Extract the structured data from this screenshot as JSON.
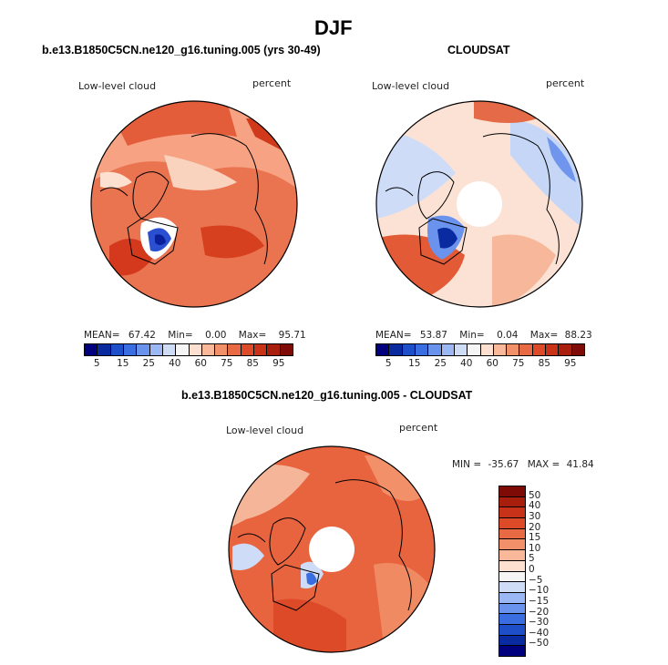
{
  "chart_data": {
    "type": "heatmap",
    "title": "DJF",
    "panels": [
      {
        "id": "model",
        "subtitle": "b.e13.B1850C5CN.ne120_g16.tuning.005 (yrs 30-49)",
        "variable": "Low-level cloud",
        "units": "percent",
        "stats": {
          "mean_label": "MEAN=",
          "mean": "67.42",
          "min_label": "Min=",
          "min": "0.00",
          "max_label": "Max=",
          "max": "95.71"
        },
        "colorbar_ticks": [
          "5",
          "15",
          "25",
          "40",
          "60",
          "75",
          "85",
          "95"
        ],
        "colorbar_colors": [
          "#00007f",
          "#0a2aa0",
          "#1f4fc8",
          "#3a6ee0",
          "#6a93ee",
          "#9cb8f4",
          "#cfdcf8",
          "#f5f5f5",
          "#fde0d0",
          "#f9b89a",
          "#f2906a",
          "#e86a45",
          "#dc4a28",
          "#c83218",
          "#a81f0e",
          "#7e0b05"
        ],
        "polar_hole": false
      },
      {
        "id": "obs",
        "subtitle": "CLOUDSAT",
        "variable": "Low-level cloud",
        "units": "percent",
        "stats": {
          "mean_label": "MEAN=",
          "mean": "53.87",
          "min_label": "Min=",
          "min": "0.04",
          "max_label": "Max=",
          "max": "88.23"
        },
        "colorbar_ticks": [
          "5",
          "15",
          "25",
          "40",
          "60",
          "75",
          "85",
          "95"
        ],
        "colorbar_colors": [
          "#00007f",
          "#0a2aa0",
          "#1f4fc8",
          "#3a6ee0",
          "#6a93ee",
          "#9cb8f4",
          "#cfdcf8",
          "#f5f5f5",
          "#fde0d0",
          "#f9b89a",
          "#f2906a",
          "#e86a45",
          "#dc4a28",
          "#c83218",
          "#a81f0e",
          "#7e0b05"
        ],
        "polar_hole": true
      },
      {
        "id": "diff",
        "subtitle": "b.e13.B1850C5CN.ne120_g16.tuning.005 - CLOUDSAT",
        "variable": "Low-level cloud",
        "units": "percent",
        "stats": {
          "min_label": "MIN =",
          "min": "-35.67",
          "max_label": "MAX =",
          "max": "41.84"
        },
        "colorbar_ticks": [
          "50",
          "40",
          "30",
          "20",
          "15",
          "10",
          "5",
          "0",
          "−5",
          "−10",
          "−15",
          "−20",
          "−30",
          "−40",
          "−50"
        ],
        "colorbar_colors": [
          "#7e0b05",
          "#a81f0e",
          "#c83218",
          "#dc4a28",
          "#e86a45",
          "#f2906a",
          "#f9b89a",
          "#fde0d0",
          "#f5f5f5",
          "#cfdcf8",
          "#9cb8f4",
          "#6a93ee",
          "#3a6ee0",
          "#1f4fc8",
          "#0a2aa0",
          "#00007f"
        ],
        "polar_hole": true
      }
    ]
  }
}
